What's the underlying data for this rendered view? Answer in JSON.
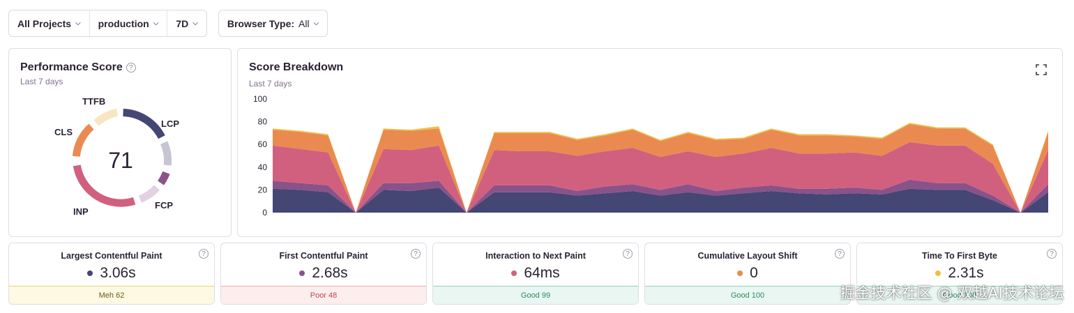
{
  "filters": {
    "project": "All Projects",
    "environment": "production",
    "period": "7D",
    "browser_label": "Browser Type:",
    "browser_value": "All"
  },
  "score_panel": {
    "title": "Performance Score",
    "subtitle": "Last 7 days",
    "score": "71",
    "labels": {
      "ttfb": "TTFB",
      "lcp": "LCP",
      "cls": "CLS",
      "fcp": "FCP",
      "inp": "INP"
    }
  },
  "breakdown": {
    "title": "Score Breakdown",
    "subtitle": "Last 7 days"
  },
  "chart_data": {
    "type": "area",
    "stacked": true,
    "title": "Score Breakdown",
    "ylim": [
      0,
      100
    ],
    "yticks": [
      0,
      20,
      40,
      60,
      80,
      100
    ],
    "x": [
      0,
      1,
      2,
      3,
      4,
      5,
      6,
      7,
      8,
      9,
      10,
      11,
      12,
      13,
      14,
      15,
      16,
      17,
      18,
      19,
      20,
      21,
      22,
      23,
      24,
      25,
      26,
      27,
      28
    ],
    "series": [
      {
        "color": "#444674",
        "values": [
          21,
          20,
          18,
          0,
          20,
          19,
          22,
          0,
          18,
          18,
          18,
          15,
          17,
          19,
          15,
          18,
          15,
          17,
          19,
          17,
          16,
          17,
          16,
          21,
          20,
          20,
          11,
          0,
          18
        ]
      },
      {
        "color": "#895289",
        "values": [
          7,
          6,
          6,
          0,
          6,
          7,
          6,
          0,
          6,
          6,
          6,
          4,
          6,
          6,
          5,
          7,
          4,
          5,
          5,
          4,
          5,
          5,
          4,
          8,
          6,
          6,
          4,
          0,
          7
        ]
      },
      {
        "color": "#d1607e",
        "values": [
          31,
          30,
          29,
          0,
          30,
          29,
          31,
          0,
          31,
          30,
          30,
          31,
          31,
          32,
          29,
          29,
          30,
          30,
          33,
          31,
          31,
          31,
          30,
          33,
          33,
          33,
          28,
          0,
          30
        ]
      },
      {
        "color": "#ea8a50",
        "values": [
          14,
          15,
          15,
          0,
          17,
          17,
          15,
          0,
          15,
          16,
          16,
          14,
          14,
          16,
          14,
          16,
          15,
          13,
          16,
          16,
          16,
          14,
          15,
          16,
          15,
          15,
          16,
          0,
          16
        ]
      },
      {
        "color": "#f0c043",
        "values": [
          1,
          1,
          1,
          0,
          1,
          1,
          2,
          0,
          1,
          1,
          1,
          1,
          1,
          1,
          1,
          1,
          1,
          1,
          1,
          1,
          1,
          1,
          1,
          1,
          1,
          1,
          1,
          0,
          1
        ]
      }
    ]
  },
  "metrics": [
    {
      "name": "Largest Contentful Paint",
      "value": "3.06s",
      "color": "#444674",
      "status": "Meh 62",
      "kind": "meh"
    },
    {
      "name": "First Contentful Paint",
      "value": "2.68s",
      "color": "#895289",
      "status": "Poor 48",
      "kind": "poor"
    },
    {
      "name": "Interaction to Next Paint",
      "value": "64ms",
      "color": "#d1607e",
      "status": "Good 99",
      "kind": "good"
    },
    {
      "name": "Cumulative Layout Shift",
      "value": "0",
      "color": "#ea8a50",
      "status": "Good 100",
      "kind": "good"
    },
    {
      "name": "Time To First Byte",
      "value": "2.31s",
      "color": "#f0c043",
      "status": "Good 100",
      "kind": "good"
    }
  ],
  "watermark": "掘金技术社区 @ 双越AI技术论坛"
}
